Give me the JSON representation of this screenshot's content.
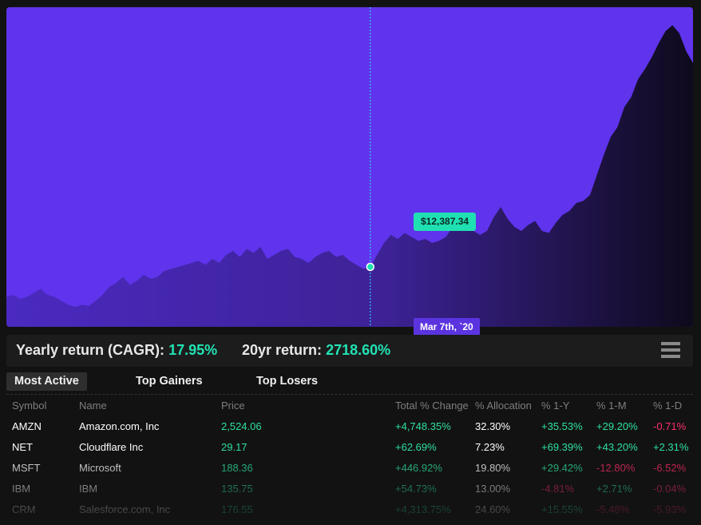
{
  "chart_data": {
    "type": "area",
    "values": [
      1.5,
      1.6,
      1.4,
      1.5,
      1.7,
      1.9,
      1.6,
      1.5,
      1.3,
      1.1,
      1.0,
      1.1,
      1.05,
      1.3,
      1.6,
      2.0,
      2.2,
      2.5,
      2.1,
      2.3,
      2.6,
      2.4,
      2.5,
      2.8,
      2.9,
      3.0,
      3.1,
      3.2,
      3.3,
      3.1,
      3.4,
      3.2,
      3.6,
      3.8,
      3.5,
      3.9,
      3.7,
      4.0,
      3.4,
      3.6,
      3.8,
      3.9,
      3.5,
      3.4,
      3.2,
      3.5,
      3.7,
      3.8,
      3.5,
      3.6,
      3.3,
      3.1,
      2.9,
      3.0,
      3.6,
      4.2,
      4.6,
      4.4,
      4.7,
      4.5,
      4.3,
      4.4,
      4.2,
      4.3,
      4.5,
      5.0,
      5.4,
      5.2,
      4.8,
      4.6,
      4.8,
      5.5,
      6.0,
      5.4,
      5.0,
      4.8,
      5.1,
      5.3,
      4.8,
      4.7,
      5.2,
      5.6,
      5.8,
      6.2,
      6.3,
      6.6,
      7.6,
      8.6,
      9.5,
      10.0,
      11.0,
      11.5,
      12.4,
      12.9,
      13.5,
      14.2,
      14.8,
      15.1,
      14.7,
      13.8,
      13.2
    ],
    "highlight": {
      "index": 53,
      "value": "$12,387.34",
      "date": "Mar 7th, `20"
    },
    "ylim": [
      0,
      16
    ]
  },
  "stats": {
    "cagr_label": "Yearly return (CAGR):",
    "cagr_value": "17.95%",
    "twenty_label": "20yr return:",
    "twenty_value": "2718.60%"
  },
  "tabs": [
    "Most Active",
    "Top Gainers",
    "Top Losers"
  ],
  "table": {
    "headers": [
      "Symbol",
      "Name",
      "Price",
      "Total % Change",
      "% Allocation",
      "% 1-Y",
      "% 1-M",
      "% 1-D"
    ],
    "rows": [
      [
        "AMZN",
        "Amazon.com, Inc",
        "2,524.06",
        "+4,748.35%",
        "32.30%",
        "+35.53%",
        "+29.20%",
        "-0.71%"
      ],
      [
        "NET",
        "Cloudflare Inc",
        "29.17",
        "+62.69%",
        "7.23%",
        "+69.39%",
        "+43.20%",
        "+2.31%"
      ],
      [
        "MSFT",
        "Microsoft",
        "188.36",
        "+446.92%",
        "19.80%",
        "+29.42%",
        "-12.80%",
        "-6.52%"
      ],
      [
        "IBM",
        "IBM",
        "135.75",
        "+54.73%",
        "13.00%",
        "-4.81%",
        "+2.71%",
        "-0.04%"
      ],
      [
        "CRM",
        "Salesforce.com, Inc",
        "176.55",
        "+4,313.75%",
        "24.60%",
        "+15.55%",
        "-5.48%",
        "-5.93%"
      ]
    ]
  },
  "colors": {
    "accent_purple": "#5f34ec",
    "accent_teal": "#1fe0b2",
    "positive": "#2ee29f",
    "negative": "#ff2e6a"
  }
}
